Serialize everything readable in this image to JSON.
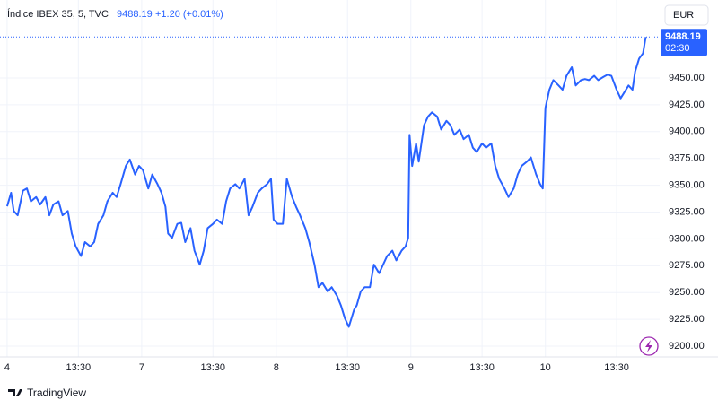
{
  "chart_data": {
    "type": "line",
    "header": {
      "symbol": "Índice IBEX 35, 5, TVC",
      "change": "+1.20 (+0.01%)"
    },
    "currency": "EUR",
    "countdown": "02:30",
    "brand": "TradingView",
    "x": [
      0,
      3,
      5,
      8,
      12,
      15,
      18,
      22,
      25,
      29,
      32,
      35,
      39,
      42,
      46,
      49,
      52,
      56,
      59,
      63,
      66,
      69,
      73,
      76,
      80,
      83,
      86,
      90,
      93,
      97,
      100,
      103,
      107,
      110,
      114,
      117,
      120,
      122,
      125,
      129,
      132,
      135,
      139,
      142,
      146,
      149,
      152,
      156,
      159,
      163,
      166,
      169,
      173,
      176,
      180,
      183,
      186,
      190,
      193,
      197,
      200,
      202,
      205,
      209,
      212,
      216,
      219,
      222,
      226,
      229,
      233,
      236,
      239,
      243,
      246,
      250,
      253,
      256,
      259,
      263,
      265,
      268,
      271,
      275,
      278,
      282,
      285,
      288,
      292,
      295,
      299,
      302,
      304,
      305,
      307,
      310,
      312,
      316,
      319,
      322,
      326,
      329,
      333,
      336,
      339,
      343,
      346,
      350,
      353,
      356,
      360,
      363,
      367,
      370,
      373,
      377,
      380,
      384,
      387,
      390,
      394,
      397,
      401,
      404,
      406,
      408,
      411,
      414,
      418,
      421,
      424,
      428,
      431,
      435,
      438,
      441,
      445,
      448,
      452,
      455,
      458,
      462,
      465,
      467,
      471,
      474,
      476,
      479,
      482,
      484
    ],
    "series": [
      {
        "name": "Índice IBEX 35",
        "color": "#2962ff",
        "values": [
          9330.4,
          9343,
          9326,
          9322,
          9345,
          9347,
          9335,
          9339,
          9332,
          9339,
          9322,
          9332,
          9335,
          9322,
          9326,
          9305,
          9293,
          9284,
          9297,
          9293,
          9297,
          9314,
          9322,
          9335,
          9343,
          9339,
          9351,
          9368,
          9374,
          9360,
          9368,
          9364,
          9347,
          9360,
          9351,
          9343,
          9330,
          9305,
          9301,
          9314,
          9315,
          9297,
          9310,
          9289,
          9276,
          9289,
          9310,
          9314,
          9318,
          9314,
          9335,
          9347,
          9351,
          9347,
          9356,
          9322,
          9330,
          9343,
          9347,
          9351,
          9356,
          9318,
          9314,
          9314,
          9356,
          9339,
          9330,
          9322,
          9310,
          9297,
          9276,
          9255,
          9259,
          9251,
          9255,
          9247,
          9238,
          9226,
          9218,
          9234,
          9238,
          9251,
          9255,
          9255,
          9276,
          9268,
          9276,
          9284,
          9289,
          9280,
          9289,
          9293,
          9301,
          9397,
          9368,
          9389,
          9372,
          9406,
          9414,
          9418,
          9414,
          9402,
          9410,
          9406,
          9397,
          9402,
          9393,
          9397,
          9385,
          9381,
          9389,
          9385,
          9389,
          9368,
          9356,
          9347,
          9339,
          9347,
          9360,
          9368,
          9372,
          9376,
          9360,
          9351,
          9347,
          9422,
          9439,
          9448,
          9443,
          9439,
          9452,
          9460,
          9443,
          9448,
          9449,
          9448,
          9452,
          9448,
          9451,
          9453,
          9452,
          9439,
          9431,
          9435,
          9443,
          9439,
          9456,
          9468,
          9473,
          9488.19
        ]
      }
    ],
    "xlim": [
      -5.4,
      494.6
    ],
    "xticks": [
      {
        "value": 0,
        "label": "4"
      },
      {
        "value": 54,
        "label": "13:30"
      },
      {
        "value": 102,
        "label": "7"
      },
      {
        "value": 156,
        "label": "13:30"
      },
      {
        "value": 204,
        "label": "8"
      },
      {
        "value": 258,
        "label": "13:30"
      },
      {
        "value": 306,
        "label": "9"
      },
      {
        "value": 360,
        "label": "13:30"
      },
      {
        "value": 408,
        "label": "10"
      },
      {
        "value": 462,
        "label": "13:30"
      }
    ],
    "ylim": [
      9190,
      9499.3
    ],
    "yticks": [
      {
        "value": 9200,
        "label": "9200.00"
      },
      {
        "value": 9225,
        "label": "9225.00"
      },
      {
        "value": 9250,
        "label": "9250.00"
      },
      {
        "value": 9275,
        "label": "9275.00"
      },
      {
        "value": 9300,
        "label": "9300.00"
      },
      {
        "value": 9325,
        "label": "9325.00"
      },
      {
        "value": 9350,
        "label": "9350.00"
      },
      {
        "value": 9375,
        "label": "9375.00"
      },
      {
        "value": 9400,
        "label": "9400.00"
      },
      {
        "value": 9425,
        "label": "9425.00"
      },
      {
        "value": 9450,
        "label": "9450.00"
      }
    ],
    "grid": true
  }
}
